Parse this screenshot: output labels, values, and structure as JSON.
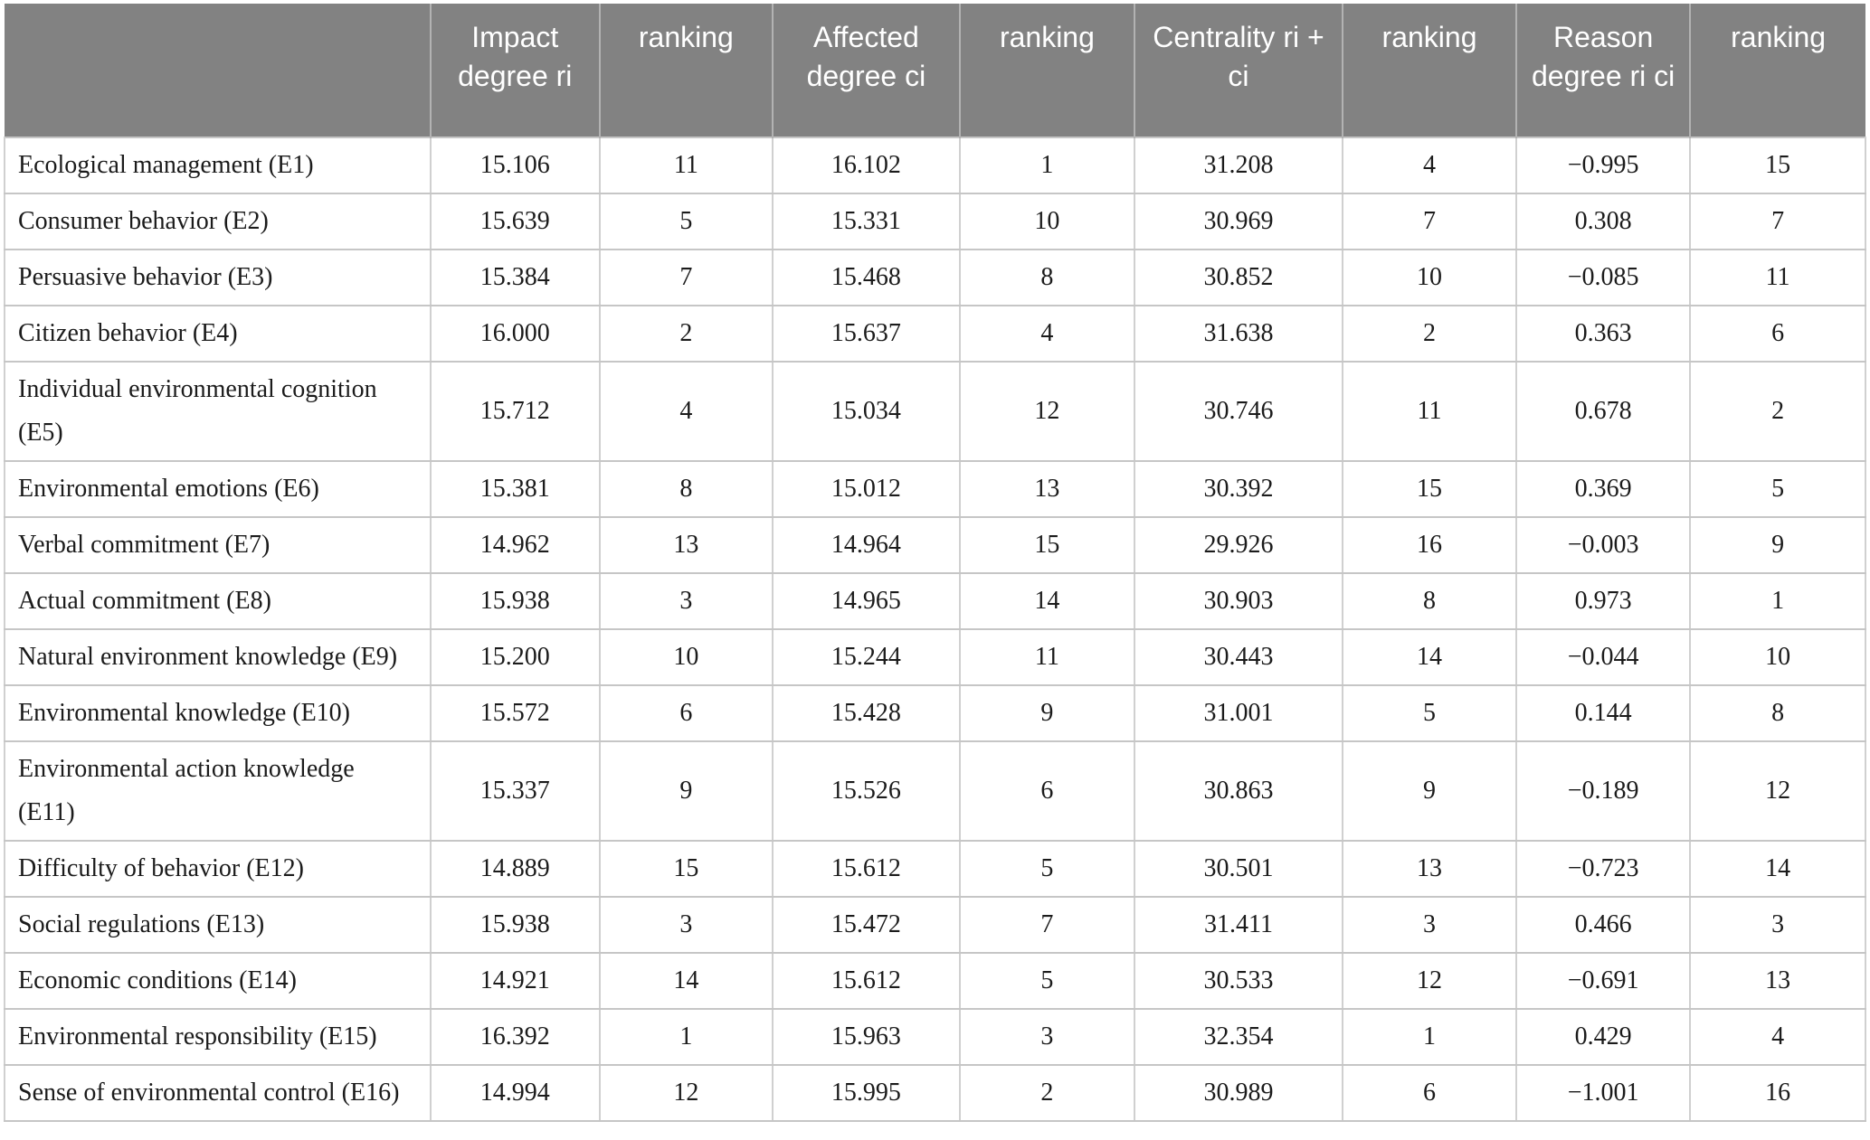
{
  "page": {
    "background_color": "#ffffff",
    "header_bg_color": "#828282",
    "header_text_color": "#ffffff",
    "grid_line_color": "#c6c6c6"
  },
  "chart_data": {
    "type": "table",
    "title": "",
    "columns": [
      "",
      "Impact degree ri",
      "ranking",
      "Affected degree ci",
      "ranking",
      "Centrality ri + ci",
      "ranking",
      "Reason degree ri ci",
      "ranking"
    ],
    "rows": [
      {
        "label": "Ecological management (E1)",
        "values": [
          "15.106",
          "11",
          "16.102",
          "1",
          "31.208",
          "4",
          "−0.995",
          "15"
        ]
      },
      {
        "label": "Consumer behavior (E2)",
        "values": [
          "15.639",
          "5",
          "15.331",
          "10",
          "30.969",
          "7",
          "0.308",
          "7"
        ]
      },
      {
        "label": "Persuasive behavior (E3)",
        "values": [
          "15.384",
          "7",
          "15.468",
          "8",
          "30.852",
          "10",
          "−0.085",
          "11"
        ]
      },
      {
        "label": "Citizen behavior (E4)",
        "values": [
          "16.000",
          "2",
          "15.637",
          "4",
          "31.638",
          "2",
          "0.363",
          "6"
        ]
      },
      {
        "label": "Individual environmental cognition (E5)",
        "values": [
          "15.712",
          "4",
          "15.034",
          "12",
          "30.746",
          "11",
          "0.678",
          "2"
        ]
      },
      {
        "label": "Environmental emotions (E6)",
        "values": [
          "15.381",
          "8",
          "15.012",
          "13",
          "30.392",
          "15",
          "0.369",
          "5"
        ]
      },
      {
        "label": "Verbal commitment (E7)",
        "values": [
          "14.962",
          "13",
          "14.964",
          "15",
          "29.926",
          "16",
          "−0.003",
          "9"
        ]
      },
      {
        "label": "Actual commitment (E8)",
        "values": [
          "15.938",
          "3",
          "14.965",
          "14",
          "30.903",
          "8",
          "0.973",
          "1"
        ]
      },
      {
        "label": "Natural environment knowledge (E9)",
        "values": [
          "15.200",
          "10",
          "15.244",
          "11",
          "30.443",
          "14",
          "−0.044",
          "10"
        ]
      },
      {
        "label": "Environmental knowledge (E10)",
        "values": [
          "15.572",
          "6",
          "15.428",
          "9",
          "31.001",
          "5",
          "0.144",
          "8"
        ]
      },
      {
        "label": "Environmental action knowledge (E11)",
        "values": [
          "15.337",
          "9",
          "15.526",
          "6",
          "30.863",
          "9",
          "−0.189",
          "12"
        ]
      },
      {
        "label": "Difficulty of behavior (E12)",
        "values": [
          "14.889",
          "15",
          "15.612",
          "5",
          "30.501",
          "13",
          "−0.723",
          "14"
        ]
      },
      {
        "label": "Social regulations (E13)",
        "values": [
          "15.938",
          "3",
          "15.472",
          "7",
          "31.411",
          "3",
          "0.466",
          "3"
        ]
      },
      {
        "label": "Economic conditions (E14)",
        "values": [
          "14.921",
          "14",
          "15.612",
          "5",
          "30.533",
          "12",
          "−0.691",
          "13"
        ]
      },
      {
        "label": "Environmental responsibility (E15)",
        "values": [
          "16.392",
          "1",
          "15.963",
          "3",
          "32.354",
          "1",
          "0.429",
          "4"
        ]
      },
      {
        "label": "Sense of environmental control (E16)",
        "values": [
          "14.994",
          "12",
          "15.995",
          "2",
          "30.989",
          "6",
          "−1.001",
          "16"
        ]
      }
    ]
  }
}
